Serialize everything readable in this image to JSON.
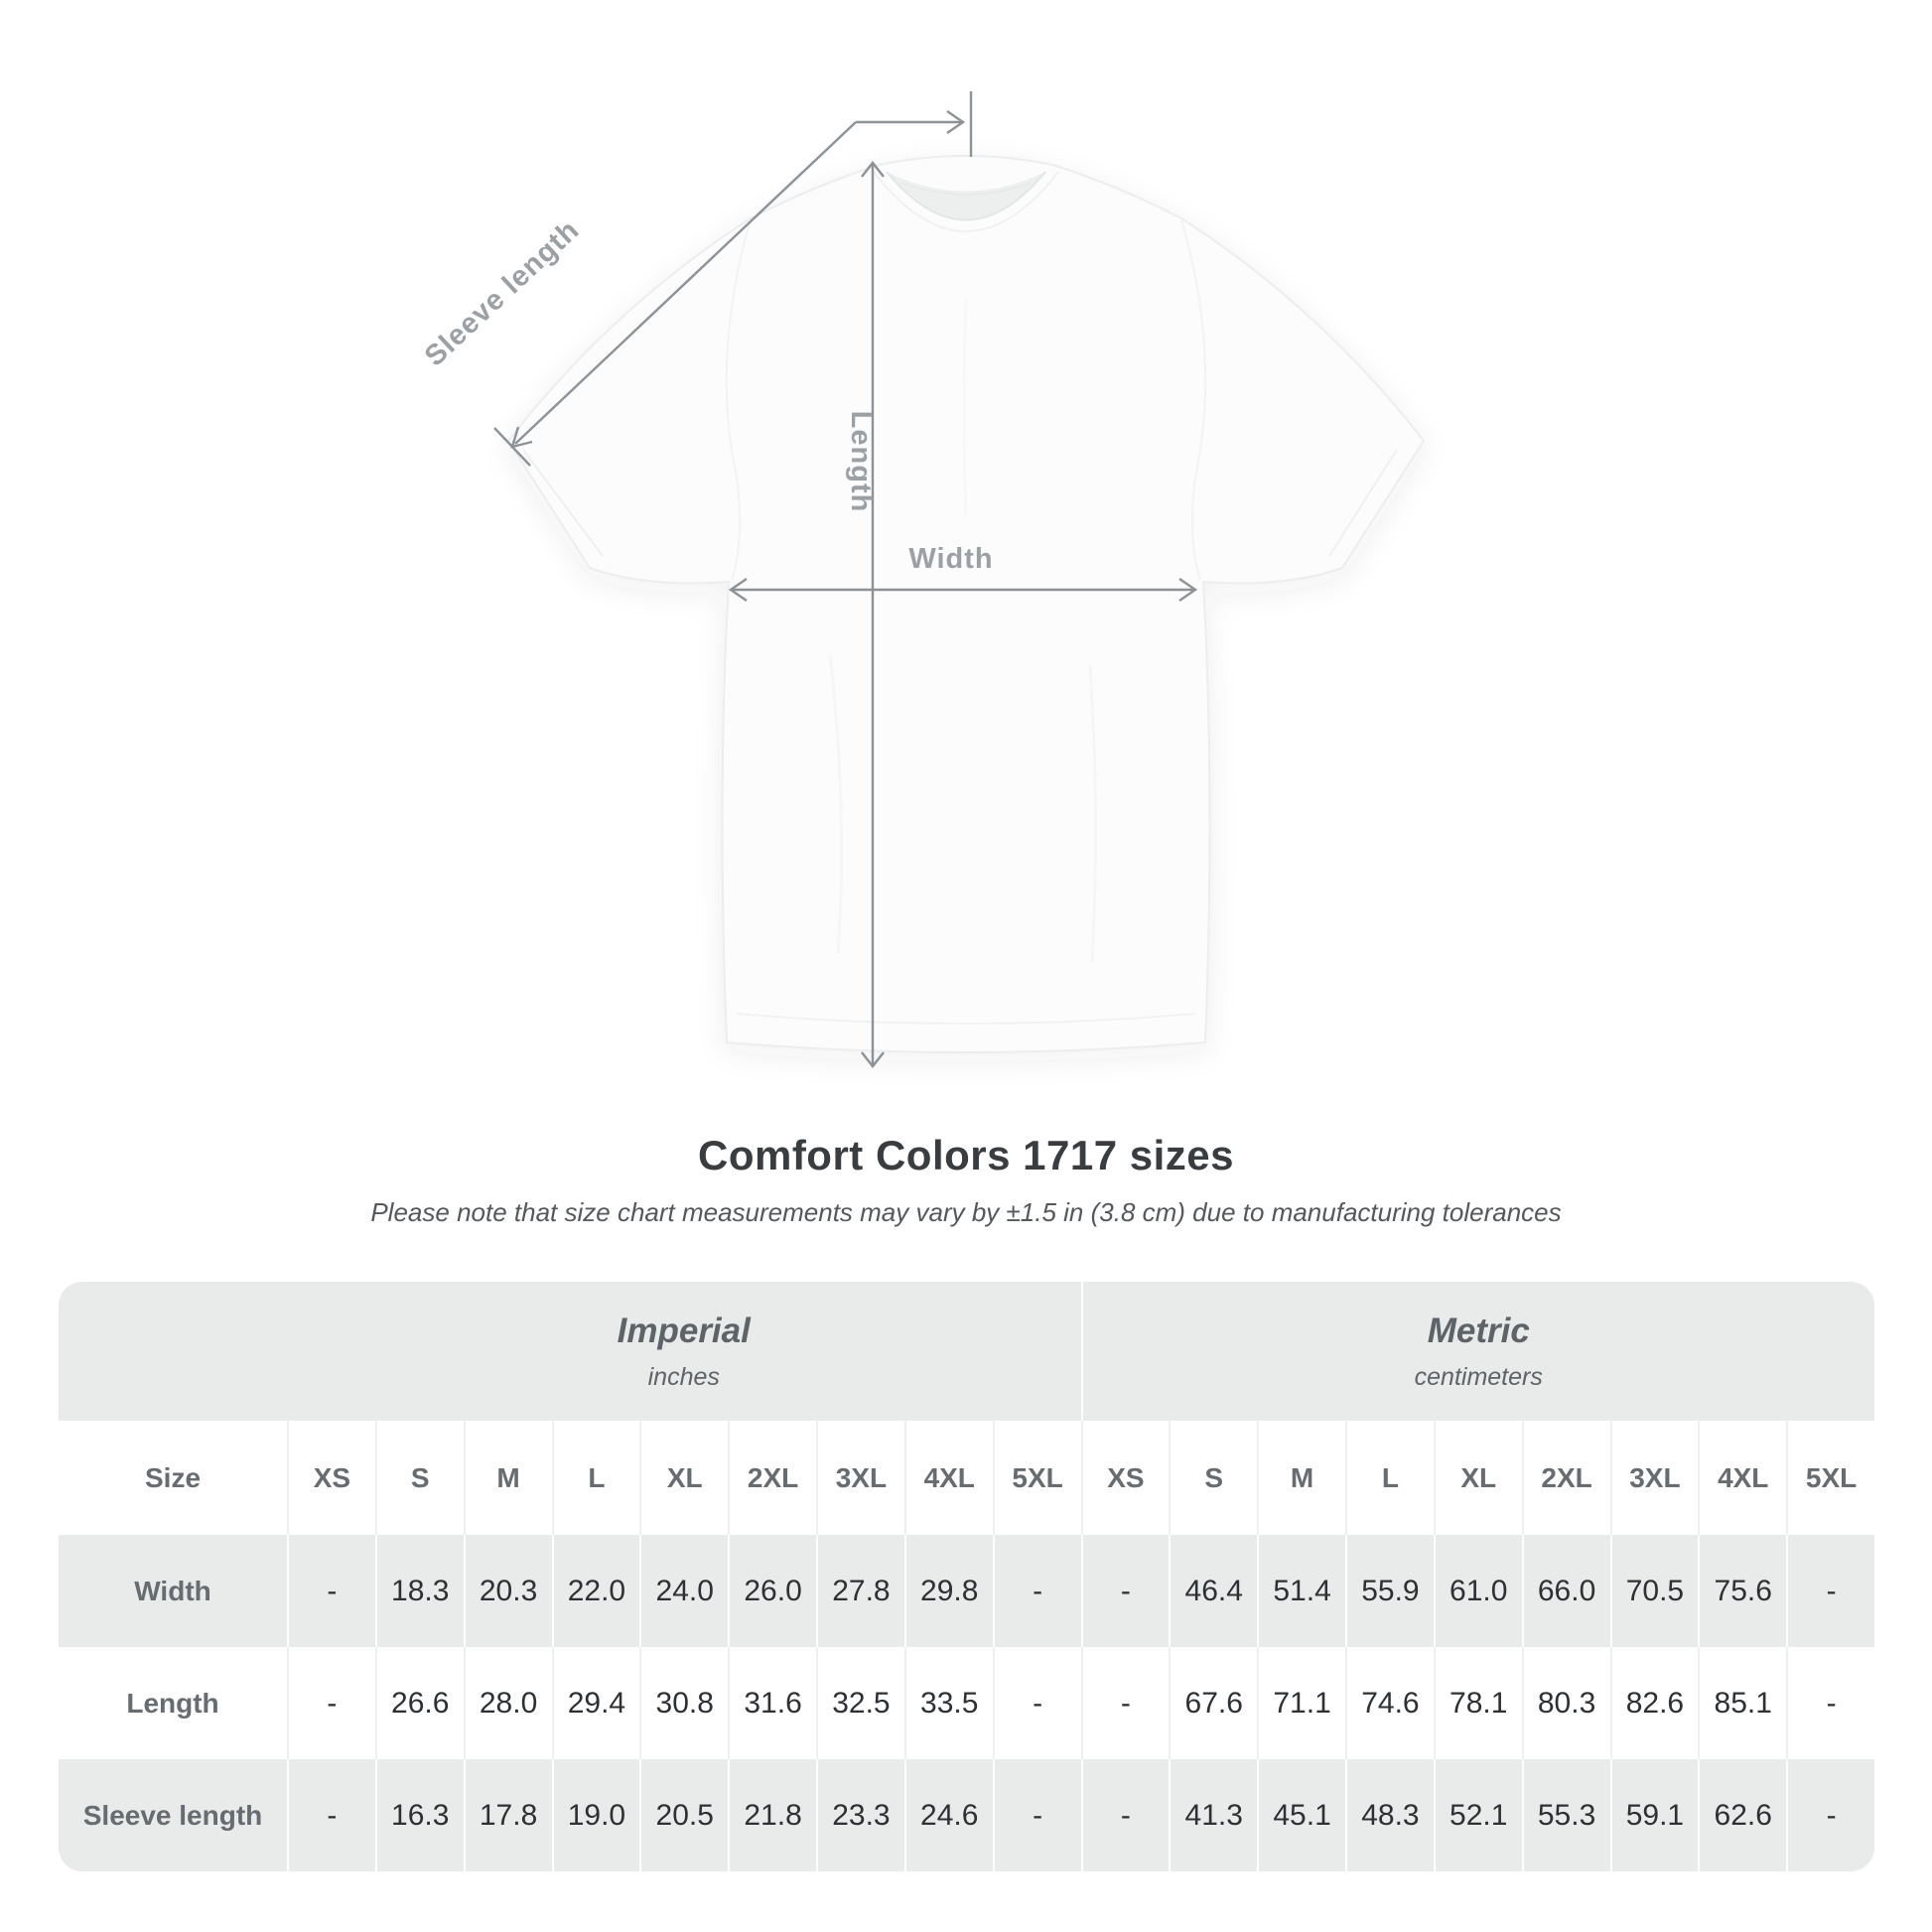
{
  "diagram": {
    "labels": {
      "sleeve_length": "Sleeve length",
      "length": "Length",
      "width": "Width"
    }
  },
  "colors": {
    "dimension_line": "#8c9296",
    "dimension_label": "#9aa0a4",
    "table_shaded": "#e9eaea",
    "header_text": "#666c70",
    "value_text": "#2e3134",
    "title_text": "#393d40"
  },
  "chart_data": {
    "type": "table",
    "title": "Comfort Colors 1717 sizes",
    "note": "Please note that size chart measurements may vary by ±1.5 in (3.8 cm) due to manufacturing tolerances",
    "size_column_header": "Size",
    "column_groups": [
      {
        "label": "Imperial",
        "unit": "inches"
      },
      {
        "label": "Metric",
        "unit": "centimeters"
      }
    ],
    "sizes": [
      "XS",
      "S",
      "M",
      "L",
      "XL",
      "2XL",
      "3XL",
      "4XL",
      "5XL"
    ],
    "rows": [
      {
        "label": "Width",
        "imperial": [
          "-",
          "18.3",
          "20.3",
          "22.0",
          "24.0",
          "26.0",
          "27.8",
          "29.8",
          "-"
        ],
        "metric": [
          "-",
          "46.4",
          "51.4",
          "55.9",
          "61.0",
          "66.0",
          "70.5",
          "75.6",
          "-"
        ]
      },
      {
        "label": "Length",
        "imperial": [
          "-",
          "26.6",
          "28.0",
          "29.4",
          "30.8",
          "31.6",
          "32.5",
          "33.5",
          "-"
        ],
        "metric": [
          "-",
          "67.6",
          "71.1",
          "74.6",
          "78.1",
          "80.3",
          "82.6",
          "85.1",
          "-"
        ]
      },
      {
        "label": "Sleeve length",
        "imperial": [
          "-",
          "16.3",
          "17.8",
          "19.0",
          "20.5",
          "21.8",
          "23.3",
          "24.6",
          "-"
        ],
        "metric": [
          "-",
          "41.3",
          "45.1",
          "48.3",
          "52.1",
          "55.3",
          "59.1",
          "62.6",
          "-"
        ]
      }
    ]
  }
}
